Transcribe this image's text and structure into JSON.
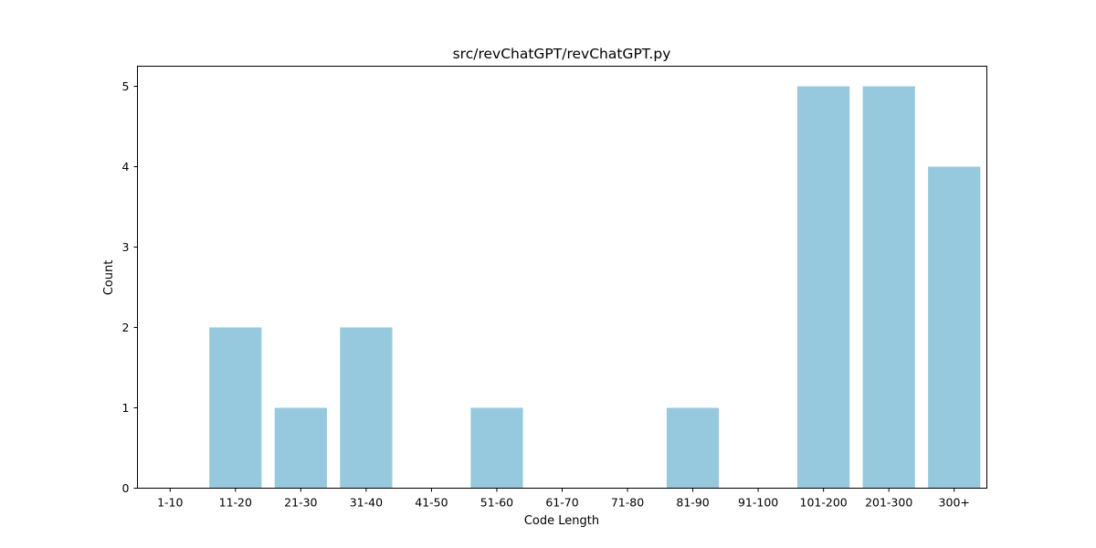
{
  "chart_data": {
    "type": "bar",
    "title": "src/revChatGPT/revChatGPT.py",
    "xlabel": "Code Length",
    "ylabel": "Count",
    "categories": [
      "1-10",
      "11-20",
      "21-30",
      "31-40",
      "41-50",
      "51-60",
      "61-70",
      "71-80",
      "81-90",
      "91-100",
      "101-200",
      "201-300",
      "300+"
    ],
    "values": [
      0,
      2,
      1,
      2,
      0,
      1,
      0,
      0,
      1,
      0,
      5,
      5,
      4
    ],
    "ylim": [
      0,
      5.25
    ],
    "yticks": [
      0,
      1,
      2,
      3,
      4,
      5
    ],
    "grid": false,
    "bar_color": "#96c9de"
  }
}
